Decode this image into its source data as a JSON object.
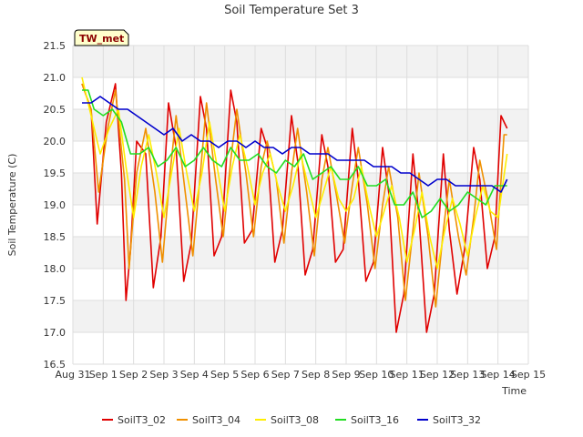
{
  "chart_data": {
    "type": "line",
    "title": "Soil Temperature Set 3",
    "xlabel": "Time",
    "ylabel": "Soil Temperature (C)",
    "site_label": "TW_met",
    "ylim": [
      16.5,
      21.5
    ],
    "xlim": [
      0,
      15
    ],
    "yticks": [
      16.5,
      17.0,
      17.5,
      18.0,
      18.5,
      19.0,
      19.5,
      20.0,
      20.5,
      21.0,
      21.5
    ],
    "ytick_labels": [
      "16.5",
      "17.0",
      "17.5",
      "18.0",
      "18.5",
      "19.0",
      "19.5",
      "20.0",
      "20.5",
      "21.0",
      "21.5"
    ],
    "xticks": [
      0,
      1,
      2,
      3,
      4,
      5,
      6,
      7,
      8,
      9,
      10,
      11,
      12,
      13,
      14,
      15
    ],
    "xtick_labels": [
      "Aug 31",
      "Sep 1",
      "Sep 2",
      "Sep 3",
      "Sep 4",
      "Sep 5",
      "Sep 6",
      "Sep 7",
      "Sep 8",
      "Sep 9",
      "Sep 10",
      "Sep 11",
      "Sep 12",
      "Sep 13",
      "Sep 14",
      "Sep 15"
    ],
    "grid": true,
    "legend_position": "bottom",
    "series": [
      {
        "name": "SoilT3_02",
        "color": "#e00000",
        "x": [
          0.3,
          0.6,
          0.8,
          1.1,
          1.4,
          1.6,
          1.75,
          1.9,
          2.1,
          2.4,
          2.65,
          2.9,
          3.15,
          3.4,
          3.65,
          3.9,
          4.2,
          4.4,
          4.65,
          4.9,
          5.2,
          5.4,
          5.65,
          5.9,
          6.2,
          6.4,
          6.65,
          6.9,
          7.2,
          7.4,
          7.65,
          7.9,
          8.2,
          8.4,
          8.65,
          8.9,
          9.2,
          9.4,
          9.65,
          9.9,
          10.2,
          10.4,
          10.65,
          10.9,
          11.2,
          11.4,
          11.65,
          11.9,
          12.2,
          12.4,
          12.65,
          12.9,
          13.2,
          13.4,
          13.65,
          13.9,
          14.1,
          14.3
        ],
        "y": [
          20.9,
          20.5,
          18.7,
          20.3,
          20.9,
          19.5,
          17.5,
          18.3,
          20.0,
          19.8,
          17.7,
          18.5,
          20.6,
          19.9,
          17.8,
          18.4,
          20.7,
          20.2,
          18.2,
          18.5,
          20.8,
          20.3,
          18.4,
          18.6,
          20.2,
          19.9,
          18.1,
          18.6,
          20.4,
          19.7,
          17.9,
          18.3,
          20.1,
          19.6,
          18.1,
          18.3,
          20.2,
          19.4,
          17.8,
          18.1,
          19.9,
          19.2,
          17.0,
          17.6,
          19.8,
          18.8,
          17.0,
          17.6,
          19.8,
          18.6,
          17.6,
          18.3,
          19.9,
          19.4,
          18.0,
          18.5,
          20.4,
          20.2
        ]
      },
      {
        "name": "SoilT3_04",
        "color": "#f09000",
        "x": [
          0.3,
          0.6,
          0.85,
          1.15,
          1.4,
          1.7,
          1.85,
          2.1,
          2.4,
          2.7,
          2.95,
          3.2,
          3.4,
          3.7,
          3.95,
          4.2,
          4.4,
          4.7,
          4.95,
          5.2,
          5.4,
          5.7,
          5.95,
          6.2,
          6.4,
          6.7,
          6.95,
          7.2,
          7.4,
          7.7,
          7.95,
          8.2,
          8.4,
          8.7,
          8.95,
          9.2,
          9.4,
          9.7,
          9.95,
          10.2,
          10.4,
          10.7,
          10.95,
          11.2,
          11.4,
          11.7,
          11.95,
          12.2,
          12.4,
          12.7,
          12.95,
          13.2,
          13.4,
          13.7,
          13.95,
          14.2,
          14.3
        ],
        "y": [
          20.9,
          20.5,
          19.2,
          20.2,
          20.8,
          19.4,
          18.0,
          19.5,
          20.2,
          19.2,
          18.1,
          19.5,
          20.4,
          19.2,
          18.2,
          19.5,
          20.6,
          19.4,
          18.5,
          19.7,
          20.5,
          19.5,
          18.5,
          19.6,
          20.0,
          19.4,
          18.4,
          19.5,
          20.2,
          19.2,
          18.2,
          19.4,
          19.9,
          19.1,
          18.4,
          19.3,
          19.9,
          19.0,
          18.0,
          19.0,
          19.6,
          18.8,
          17.5,
          18.6,
          19.5,
          18.5,
          17.4,
          18.6,
          19.4,
          18.5,
          17.9,
          18.8,
          19.7,
          19.0,
          18.3,
          20.1,
          20.1
        ]
      },
      {
        "name": "SoilT3_08",
        "color": "#ffee00",
        "x": [
          0.3,
          0.6,
          0.9,
          1.2,
          1.5,
          1.75,
          2.0,
          2.25,
          2.5,
          2.75,
          3.0,
          3.25,
          3.5,
          3.75,
          4.0,
          4.25,
          4.5,
          4.75,
          5.0,
          5.25,
          5.5,
          5.75,
          6.0,
          6.25,
          6.5,
          6.75,
          7.0,
          7.25,
          7.5,
          7.75,
          8.0,
          8.25,
          8.5,
          8.75,
          9.0,
          9.25,
          9.5,
          9.75,
          10.0,
          10.25,
          10.5,
          10.75,
          11.0,
          11.25,
          11.5,
          11.75,
          12.0,
          12.25,
          12.5,
          12.75,
          13.0,
          13.25,
          13.5,
          13.75,
          14.0,
          14.3
        ],
        "y": [
          21.0,
          20.4,
          19.8,
          20.2,
          20.5,
          19.6,
          18.8,
          19.6,
          20.1,
          19.5,
          18.8,
          19.5,
          20.2,
          19.5,
          18.9,
          19.5,
          20.3,
          19.6,
          18.9,
          19.6,
          20.1,
          19.6,
          19.0,
          19.5,
          19.8,
          19.3,
          18.9,
          19.3,
          19.8,
          19.3,
          18.8,
          19.2,
          19.6,
          19.1,
          18.9,
          19.1,
          19.6,
          19.0,
          18.5,
          18.9,
          19.3,
          18.8,
          18.1,
          18.6,
          19.2,
          18.5,
          18.0,
          18.6,
          19.1,
          18.7,
          18.2,
          18.8,
          19.3,
          18.9,
          18.8,
          19.8
        ]
      },
      {
        "name": "SoilT3_16",
        "color": "#22dd22",
        "x": [
          0.3,
          0.5,
          0.7,
          1.0,
          1.3,
          1.6,
          1.9,
          2.2,
          2.5,
          2.8,
          3.1,
          3.4,
          3.7,
          4.0,
          4.3,
          4.6,
          4.9,
          5.2,
          5.5,
          5.8,
          6.1,
          6.4,
          6.7,
          7.0,
          7.3,
          7.6,
          7.9,
          8.2,
          8.5,
          8.8,
          9.1,
          9.4,
          9.7,
          10.0,
          10.3,
          10.6,
          10.9,
          11.2,
          11.5,
          11.8,
          12.1,
          12.4,
          12.7,
          13.0,
          13.3,
          13.6,
          13.9,
          14.3
        ],
        "y": [
          20.8,
          20.8,
          20.5,
          20.4,
          20.5,
          20.3,
          19.8,
          19.8,
          19.9,
          19.6,
          19.7,
          19.9,
          19.6,
          19.7,
          19.9,
          19.7,
          19.6,
          19.9,
          19.7,
          19.7,
          19.8,
          19.6,
          19.5,
          19.7,
          19.6,
          19.8,
          19.4,
          19.5,
          19.6,
          19.4,
          19.4,
          19.6,
          19.3,
          19.3,
          19.4,
          19.0,
          19.0,
          19.2,
          18.8,
          18.9,
          19.1,
          18.9,
          19.0,
          19.2,
          19.1,
          19.0,
          19.3,
          19.3
        ]
      },
      {
        "name": "SoilT3_32",
        "color": "#0000cc",
        "x": [
          0.3,
          0.6,
          0.9,
          1.2,
          1.5,
          1.8,
          2.1,
          2.4,
          2.7,
          3.0,
          3.3,
          3.6,
          3.9,
          4.2,
          4.5,
          4.8,
          5.1,
          5.4,
          5.7,
          6.0,
          6.3,
          6.6,
          6.9,
          7.2,
          7.5,
          7.8,
          8.1,
          8.4,
          8.7,
          9.0,
          9.3,
          9.6,
          9.9,
          10.2,
          10.5,
          10.8,
          11.1,
          11.4,
          11.7,
          12.0,
          12.3,
          12.6,
          12.9,
          13.2,
          13.5,
          13.8,
          14.1,
          14.3
        ],
        "y": [
          20.6,
          20.6,
          20.7,
          20.6,
          20.5,
          20.5,
          20.4,
          20.3,
          20.2,
          20.1,
          20.2,
          20.0,
          20.1,
          20.0,
          20.0,
          19.9,
          20.0,
          20.0,
          19.9,
          20.0,
          19.9,
          19.9,
          19.8,
          19.9,
          19.9,
          19.8,
          19.8,
          19.8,
          19.7,
          19.7,
          19.7,
          19.7,
          19.6,
          19.6,
          19.6,
          19.5,
          19.5,
          19.4,
          19.3,
          19.4,
          19.4,
          19.3,
          19.3,
          19.3,
          19.3,
          19.3,
          19.2,
          19.4
        ]
      }
    ]
  }
}
